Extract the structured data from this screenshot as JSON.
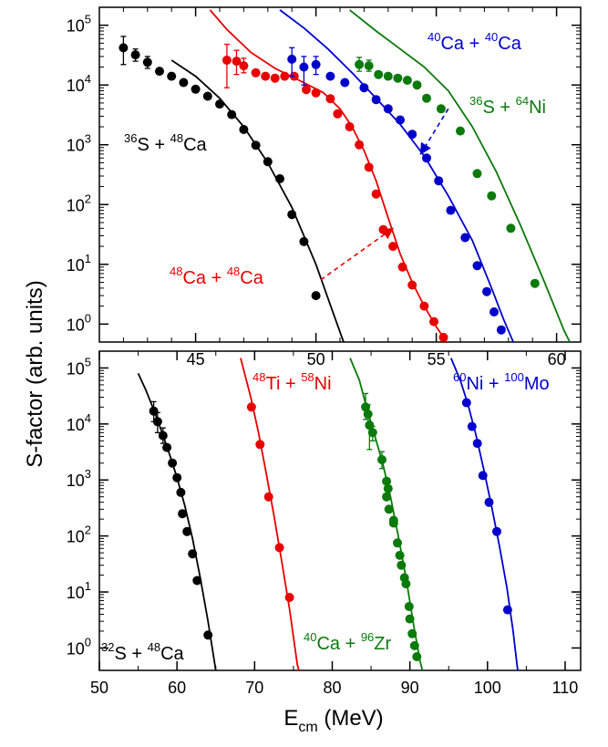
{
  "chart_data": [
    {
      "type": "scatter",
      "xlim": [
        41,
        61
      ],
      "ylim_log10": [
        -0.3,
        5.3
      ],
      "y_scale": "log",
      "x_ticks": [
        45,
        50,
        55,
        60
      ],
      "y_ticks": [
        0,
        1,
        2,
        3,
        4,
        5
      ],
      "series": [
        {
          "label": {
            "pre": "36",
            "a": "S + ",
            "sup2": "48",
            "b": "Ca"
          },
          "color": "#000000",
          "points": [
            [
              42.0,
              42000
            ],
            [
              42.5,
              32000
            ],
            [
              43.0,
              24000
            ],
            [
              43.5,
              17000
            ],
            [
              44.0,
              14000
            ],
            [
              44.5,
              11000
            ],
            [
              45.0,
              8500
            ],
            [
              45.5,
              6500
            ],
            [
              46.0,
              4800
            ],
            [
              46.5,
              3200
            ],
            [
              47.0,
              1800
            ],
            [
              47.5,
              980
            ],
            [
              48.0,
              520
            ],
            [
              48.5,
              270
            ],
            [
              49.0,
              68
            ],
            [
              49.5,
              24
            ],
            [
              50.0,
              3.0
            ]
          ],
          "errors": [
            [
              42.0,
              22000,
              65000
            ],
            [
              42.5,
              25000,
              40000
            ],
            [
              43.0,
              19000,
              30000
            ]
          ],
          "fit": [
            [
              44.0,
              26000
            ],
            [
              45.0,
              14000
            ],
            [
              46.0,
              6000
            ],
            [
              47.0,
              2000
            ],
            [
              48.0,
              500
            ],
            [
              49.0,
              90
            ],
            [
              50.0,
              10
            ],
            [
              50.7,
              1.6
            ],
            [
              51.15,
              0.5
            ]
          ]
        },
        {
          "label": {
            "pre": "48",
            "a": "Ca + ",
            "sup2": "48",
            "b": "Ca"
          },
          "color": "#e80000",
          "points": [
            [
              46.3,
              26000
            ],
            [
              46.7,
              25000
            ],
            [
              47.0,
              21000
            ],
            [
              47.5,
              16000
            ],
            [
              47.9,
              14000
            ],
            [
              48.3,
              13000
            ],
            [
              48.7,
              14000
            ],
            [
              49.1,
              14000
            ],
            [
              49.6,
              8400
            ],
            [
              50.0,
              7400
            ],
            [
              50.6,
              5900
            ],
            [
              50.9,
              3300
            ],
            [
              51.4,
              2000
            ],
            [
              51.8,
              1000
            ],
            [
              52.2,
              420
            ],
            [
              52.5,
              150
            ],
            [
              52.8,
              38
            ],
            [
              53.2,
              20
            ],
            [
              53.6,
              9.0
            ],
            [
              54.0,
              4.5
            ],
            [
              54.5,
              2.0
            ],
            [
              54.9,
              1.1
            ],
            [
              55.3,
              0.6
            ]
          ],
          "errors": [
            [
              46.3,
              9000,
              48000
            ],
            [
              46.7,
              15000,
              38000
            ],
            [
              47.0,
              16000,
              28000
            ]
          ],
          "fit": [
            [
              45.6,
              180000
            ],
            [
              46.3,
              85000
            ],
            [
              47.3,
              35000
            ],
            [
              48.3,
              19000
            ],
            [
              49.3,
              12000
            ],
            [
              50.3,
              7500
            ],
            [
              51.0,
              4000
            ],
            [
              51.5,
              2000
            ],
            [
              52.0,
              800
            ],
            [
              52.5,
              250
            ],
            [
              53.0,
              60
            ],
            [
              53.5,
              15
            ],
            [
              54.0,
              5
            ],
            [
              54.5,
              2
            ],
            [
              55.0,
              0.9
            ],
            [
              55.6,
              0.4
            ]
          ]
        },
        {
          "label": {
            "pre": "40",
            "a": "Ca + ",
            "sup2": "40",
            "b": "Ca"
          },
          "color": "#0000cc",
          "points": [
            [
              49.0,
              27000
            ],
            [
              49.5,
              20000
            ],
            [
              50.0,
              22000
            ],
            [
              50.6,
              14000
            ],
            [
              51.2,
              11000
            ],
            [
              52.0,
              9000
            ],
            [
              52.5,
              5700
            ],
            [
              53.0,
              4000
            ],
            [
              53.5,
              2600
            ],
            [
              54.0,
              1500
            ],
            [
              54.6,
              600
            ],
            [
              55.1,
              250
            ],
            [
              55.6,
              80
            ],
            [
              56.2,
              28
            ],
            [
              56.7,
              9.5
            ],
            [
              57.1,
              3.5
            ],
            [
              57.4,
              1.6
            ],
            [
              57.7,
              0.8
            ]
          ],
          "errors": [
            [
              49.0,
              14000,
              42000
            ],
            [
              49.5,
              10000,
              30000
            ],
            [
              50.0,
              15000,
              30000
            ]
          ],
          "fit": [
            [
              48.5,
              180000
            ],
            [
              49.5,
              90000
            ],
            [
              50.5,
              40000
            ],
            [
              51.5,
              16000
            ],
            [
              52.5,
              6000
            ],
            [
              53.5,
              2200
            ],
            [
              54.5,
              650
            ],
            [
              55.5,
              140
            ],
            [
              56.5,
              25
            ],
            [
              57.3,
              4
            ],
            [
              57.8,
              1.2
            ],
            [
              58.2,
              0.5
            ]
          ]
        },
        {
          "label": {
            "pre": "36",
            "a": "S + ",
            "sup2": "64",
            "b": "Ni"
          },
          "color": "#0a7a0a",
          "points": [
            [
              51.8,
              22000
            ],
            [
              52.2,
              21000
            ],
            [
              52.6,
              15000
            ],
            [
              53.0,
              14000
            ],
            [
              53.4,
              13000
            ],
            [
              53.8,
              12000
            ],
            [
              54.2,
              10000
            ],
            [
              54.6,
              6000
            ],
            [
              55.2,
              4000
            ],
            [
              56.0,
              1700
            ],
            [
              56.7,
              330
            ],
            [
              57.3,
              140
            ],
            [
              58.1,
              40
            ],
            [
              59.1,
              4.8
            ]
          ],
          "errors": [
            [
              51.8,
              17000,
              29000
            ],
            [
              52.2,
              17000,
              26000
            ]
          ],
          "fit": [
            [
              51.4,
              180000
            ],
            [
              52.5,
              80000
            ],
            [
              53.5,
              40000
            ],
            [
              54.5,
              20000
            ],
            [
              55.5,
              8000
            ],
            [
              56.5,
              2000
            ],
            [
              57.5,
              350
            ],
            [
              58.5,
              45
            ],
            [
              59.5,
              5
            ],
            [
              60.3,
              0.8
            ],
            [
              60.55,
              0.5
            ]
          ]
        }
      ],
      "annotations": [
        {
          "target_series": 1,
          "from": [
            50.2,
            5.5
          ],
          "to": [
            53.2,
            40
          ]
        },
        {
          "target_series": 2,
          "from": [
            55.5,
            4000
          ],
          "to": [
            54.35,
            700
          ]
        }
      ]
    },
    {
      "type": "scatter",
      "xlabel_main": "E",
      "xlabel_sub": "cm",
      "xlabel_unit": " (MeV)",
      "ylabel": "S-factor  (arb. units)",
      "xlim": [
        50,
        112
      ],
      "ylim_log10": [
        -0.4,
        5.3
      ],
      "y_scale": "log",
      "x_ticks": [
        50,
        60,
        70,
        80,
        90,
        100,
        110
      ],
      "y_ticks": [
        0,
        1,
        2,
        3,
        4,
        5
      ],
      "series": [
        {
          "label": {
            "pre": "32",
            "a": "S + ",
            "sup2": "48",
            "b": "Ca"
          },
          "color": "#000000",
          "points": [
            [
              57.0,
              17000
            ],
            [
              57.5,
              11000
            ],
            [
              58.2,
              6200
            ],
            [
              58.7,
              3800
            ],
            [
              59.4,
              2000
            ],
            [
              60.0,
              1100
            ],
            [
              60.5,
              600
            ],
            [
              60.7,
              250
            ],
            [
              61.3,
              120
            ],
            [
              62.0,
              48
            ],
            [
              62.6,
              16
            ],
            [
              64.0,
              1.7
            ]
          ],
          "errors": [
            [
              57.0,
              11000,
              25000
            ],
            [
              57.5,
              7000,
              16000
            ],
            [
              58.2,
              4500,
              8500
            ]
          ],
          "fit": [
            [
              55.0,
              80000
            ],
            [
              56.0,
              40000
            ],
            [
              57.0,
              18000
            ],
            [
              58.0,
              7500
            ],
            [
              59.0,
              3000
            ],
            [
              60.0,
              1100
            ],
            [
              61.0,
              350
            ],
            [
              62.0,
              90
            ],
            [
              63.0,
              18
            ],
            [
              64.0,
              3
            ],
            [
              65.0,
              0.4
            ]
          ]
        },
        {
          "label": {
            "pre": "48",
            "a": "Ti + ",
            "sup2": "58",
            "b": "Ni"
          },
          "color": "#e80000",
          "points": [
            [
              69.6,
              20000
            ],
            [
              70.7,
              4300
            ],
            [
              71.8,
              500
            ],
            [
              73.2,
              62
            ],
            [
              74.5,
              8.0
            ]
          ],
          "errors": [],
          "fit": [
            [
              68.2,
              150000
            ],
            [
              69.5,
              30000
            ],
            [
              70.5,
              7000
            ],
            [
              71.5,
              1300
            ],
            [
              72.5,
              230
            ],
            [
              73.5,
              35
            ],
            [
              74.5,
              5
            ],
            [
              75.5,
              0.5
            ],
            [
              75.7,
              0.4
            ]
          ]
        },
        {
          "label": {
            "pre": "40",
            "a": "Ca + ",
            "sup2": "96",
            "b": "Zr"
          },
          "color": "#0a7a0a",
          "points": [
            [
              84.3,
              20000
            ],
            [
              84.6,
              15000
            ],
            [
              84.8,
              9500
            ],
            [
              85.2,
              7000
            ],
            [
              86.4,
              2300
            ],
            [
              87.0,
              950
            ],
            [
              87.2,
              700
            ],
            [
              87.0,
              500
            ],
            [
              87.3,
              300
            ],
            [
              87.9,
              190
            ],
            [
              87.9,
              170
            ],
            [
              88.4,
              75
            ],
            [
              88.7,
              45
            ],
            [
              88.9,
              30
            ],
            [
              89.3,
              18
            ],
            [
              89.5,
              14
            ],
            [
              89.9,
              5.5
            ],
            [
              90.0,
              3.3
            ],
            [
              90.3,
              1.8
            ],
            [
              90.6,
              1.1
            ],
            [
              90.9,
              0.7
            ]
          ],
          "errors": [
            [
              84.3,
              12000,
              35000
            ],
            [
              84.6,
              10000,
              22000
            ],
            [
              84.8,
              3500,
              15000
            ],
            [
              85.2,
              5000,
              9000
            ],
            [
              86.4,
              1600,
              3200
            ]
          ],
          "fit": [
            [
              82.3,
              150000
            ],
            [
              83.5,
              60000
            ],
            [
              84.5,
              18000
            ],
            [
              85.5,
              6000
            ],
            [
              86.5,
              2000
            ],
            [
              87.5,
              500
            ],
            [
              88.5,
              100
            ],
            [
              89.5,
              18
            ],
            [
              90.5,
              2.5
            ],
            [
              91.3,
              0.6
            ],
            [
              91.6,
              0.4
            ]
          ]
        },
        {
          "label": {
            "pre": "60",
            "a": "Ni + ",
            "sup2": "100",
            "b": "Mo"
          },
          "color": "#0000cc",
          "points": [
            [
              97.3,
              24000
            ],
            [
              98.0,
              9000
            ],
            [
              98.7,
              4500
            ],
            [
              99.4,
              1200
            ],
            [
              100.2,
              400
            ],
            [
              101.2,
              120
            ],
            [
              102.6,
              4.8
            ]
          ],
          "errors": [],
          "fit": [
            [
              95.3,
              150000
            ],
            [
              96.5,
              60000
            ],
            [
              97.5,
              22000
            ],
            [
              98.5,
              6500
            ],
            [
              99.5,
              1600
            ],
            [
              100.5,
              350
            ],
            [
              101.5,
              70
            ],
            [
              102.5,
              12
            ],
            [
              103.3,
              2
            ],
            [
              103.8,
              0.5
            ],
            [
              103.9,
              0.4
            ]
          ]
        }
      ],
      "annotations": []
    }
  ]
}
